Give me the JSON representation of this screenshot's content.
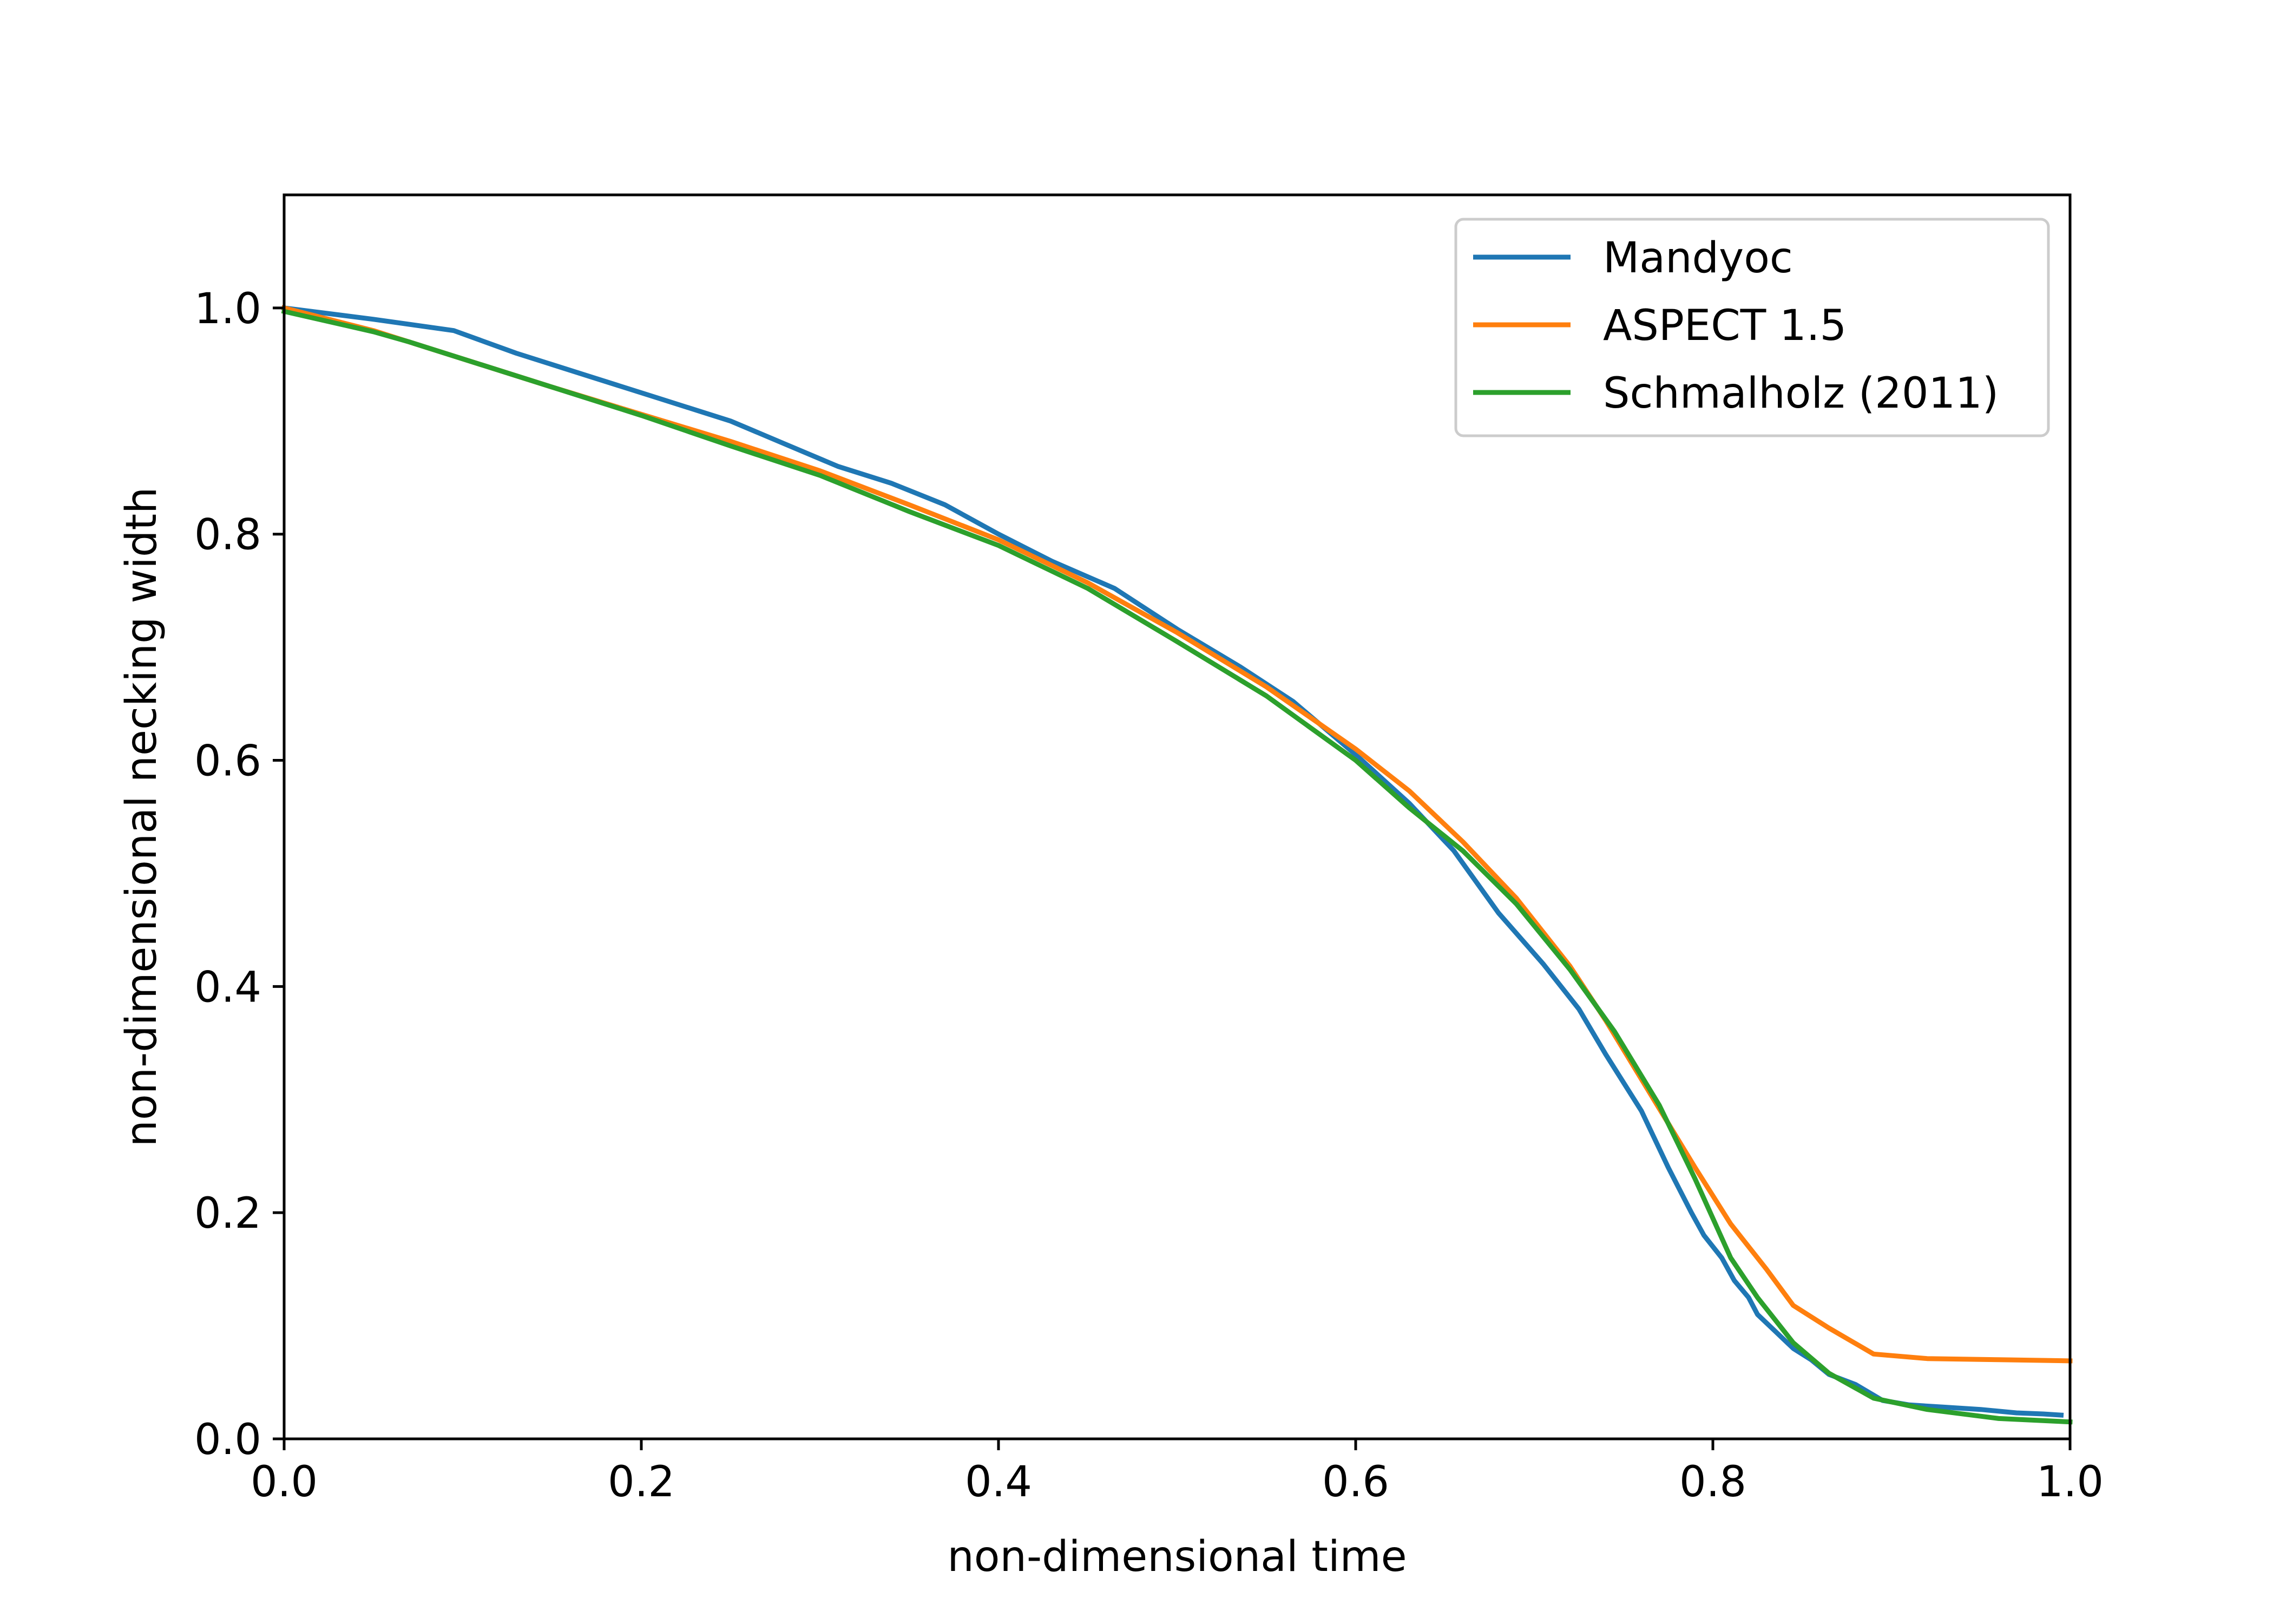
{
  "chart_data": {
    "type": "line",
    "title": "",
    "xlabel": "non-dimensional time",
    "ylabel": "non-dimensional necking width",
    "xlim": [
      0.0,
      1.0
    ],
    "ylim": [
      0.0,
      1.1
    ],
    "xticks": [
      0.0,
      0.2,
      0.4,
      0.6,
      0.8,
      1.0
    ],
    "yticks": [
      0.0,
      0.2,
      0.4,
      0.6,
      0.8,
      1.0
    ],
    "xtick_labels": [
      "0.0",
      "0.2",
      "0.4",
      "0.6",
      "0.8",
      "1.0"
    ],
    "ytick_labels": [
      "0.0",
      "0.2",
      "0.4",
      "0.6",
      "0.8",
      "1.0"
    ],
    "grid": false,
    "legend_position": "top-right",
    "series": [
      {
        "name": "Mandyoc",
        "color": "#1f77b4",
        "points": [
          [
            0.0,
            1.0
          ],
          [
            0.05,
            0.99
          ],
          [
            0.095,
            0.98
          ],
          [
            0.13,
            0.96
          ],
          [
            0.17,
            0.94
          ],
          [
            0.21,
            0.92
          ],
          [
            0.25,
            0.9
          ],
          [
            0.28,
            0.88
          ],
          [
            0.31,
            0.86
          ],
          [
            0.34,
            0.845
          ],
          [
            0.37,
            0.826
          ],
          [
            0.4,
            0.8
          ],
          [
            0.43,
            0.776
          ],
          [
            0.465,
            0.752
          ],
          [
            0.5,
            0.716
          ],
          [
            0.535,
            0.683
          ],
          [
            0.565,
            0.652
          ],
          [
            0.6,
            0.605
          ],
          [
            0.63,
            0.562
          ],
          [
            0.655,
            0.52
          ],
          [
            0.68,
            0.465
          ],
          [
            0.705,
            0.42
          ],
          [
            0.725,
            0.38
          ],
          [
            0.74,
            0.34
          ],
          [
            0.76,
            0.29
          ],
          [
            0.775,
            0.24
          ],
          [
            0.788,
            0.2
          ],
          [
            0.795,
            0.18
          ],
          [
            0.805,
            0.16
          ],
          [
            0.812,
            0.14
          ],
          [
            0.82,
            0.125
          ],
          [
            0.825,
            0.11
          ],
          [
            0.835,
            0.095
          ],
          [
            0.845,
            0.08
          ],
          [
            0.855,
            0.07
          ],
          [
            0.865,
            0.057
          ],
          [
            0.88,
            0.048
          ],
          [
            0.895,
            0.034
          ],
          [
            0.91,
            0.03
          ],
          [
            0.93,
            0.028
          ],
          [
            0.95,
            0.026
          ],
          [
            0.97,
            0.023
          ],
          [
            0.985,
            0.022
          ],
          [
            0.995,
            0.021
          ]
        ]
      },
      {
        "name": "ASPECT 1.5",
        "color": "#ff7f0e",
        "points": [
          [
            0.0,
            1.0
          ],
          [
            0.05,
            0.98
          ],
          [
            0.1,
            0.955
          ],
          [
            0.15,
            0.93
          ],
          [
            0.2,
            0.906
          ],
          [
            0.25,
            0.882
          ],
          [
            0.3,
            0.856
          ],
          [
            0.35,
            0.826
          ],
          [
            0.4,
            0.795
          ],
          [
            0.45,
            0.757
          ],
          [
            0.5,
            0.713
          ],
          [
            0.55,
            0.665
          ],
          [
            0.6,
            0.61
          ],
          [
            0.63,
            0.573
          ],
          [
            0.66,
            0.528
          ],
          [
            0.69,
            0.478
          ],
          [
            0.72,
            0.418
          ],
          [
            0.74,
            0.37
          ],
          [
            0.765,
            0.305
          ],
          [
            0.79,
            0.24
          ],
          [
            0.81,
            0.19
          ],
          [
            0.83,
            0.15
          ],
          [
            0.845,
            0.118
          ],
          [
            0.865,
            0.098
          ],
          [
            0.89,
            0.075
          ],
          [
            0.92,
            0.071
          ],
          [
            0.96,
            0.07
          ],
          [
            1.0,
            0.069
          ]
        ]
      },
      {
        "name": "Schmalholz (2011)",
        "color": "#2ca02c",
        "points": [
          [
            0.0,
            0.997
          ],
          [
            0.05,
            0.979
          ],
          [
            0.07,
            0.97
          ],
          [
            0.1,
            0.955
          ],
          [
            0.15,
            0.93
          ],
          [
            0.2,
            0.905
          ],
          [
            0.25,
            0.878
          ],
          [
            0.3,
            0.852
          ],
          [
            0.35,
            0.82
          ],
          [
            0.4,
            0.79
          ],
          [
            0.45,
            0.752
          ],
          [
            0.5,
            0.705
          ],
          [
            0.55,
            0.657
          ],
          [
            0.6,
            0.6
          ],
          [
            0.63,
            0.558
          ],
          [
            0.66,
            0.52
          ],
          [
            0.69,
            0.473
          ],
          [
            0.72,
            0.415
          ],
          [
            0.745,
            0.36
          ],
          [
            0.77,
            0.295
          ],
          [
            0.79,
            0.23
          ],
          [
            0.81,
            0.16
          ],
          [
            0.825,
            0.125
          ],
          [
            0.845,
            0.085
          ],
          [
            0.865,
            0.058
          ],
          [
            0.89,
            0.036
          ],
          [
            0.92,
            0.026
          ],
          [
            0.96,
            0.018
          ],
          [
            1.0,
            0.015
          ]
        ]
      }
    ]
  }
}
